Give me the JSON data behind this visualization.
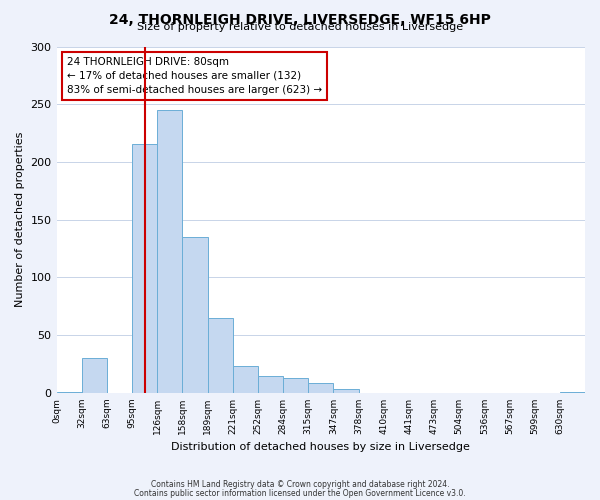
{
  "title": "24, THORNLEIGH DRIVE, LIVERSEDGE, WF15 6HP",
  "subtitle": "Size of property relative to detached houses in Liversedge",
  "xlabel": "Distribution of detached houses by size in Liversedge",
  "ylabel": "Number of detached properties",
  "bin_labels": [
    "0sqm",
    "32sqm",
    "63sqm",
    "95sqm",
    "126sqm",
    "158sqm",
    "189sqm",
    "221sqm",
    "252sqm",
    "284sqm",
    "315sqm",
    "347sqm",
    "378sqm",
    "410sqm",
    "441sqm",
    "473sqm",
    "504sqm",
    "536sqm",
    "567sqm",
    "599sqm",
    "630sqm"
  ],
  "bar_values": [
    1,
    30,
    0,
    216,
    245,
    135,
    65,
    23,
    15,
    13,
    9,
    3,
    0,
    0,
    0,
    0,
    0,
    0,
    0,
    0,
    1
  ],
  "bar_color": "#c5d8f0",
  "bar_edge_color": "#6baed6",
  "marker_line_color": "#cc0000",
  "annotation_text": "24 THORNLEIGH DRIVE: 80sqm\n← 17% of detached houses are smaller (132)\n83% of semi-detached houses are larger (623) →",
  "annotation_box_edge_color": "#cc0000",
  "ylim": [
    0,
    300
  ],
  "yticks": [
    0,
    50,
    100,
    150,
    200,
    250,
    300
  ],
  "footer_line1": "Contains HM Land Registry data © Crown copyright and database right 2024.",
  "footer_line2": "Contains public sector information licensed under the Open Government Licence v3.0.",
  "bg_color": "#eef2fb",
  "plot_bg_color": "#ffffff",
  "grid_color": "#c8d4e8"
}
